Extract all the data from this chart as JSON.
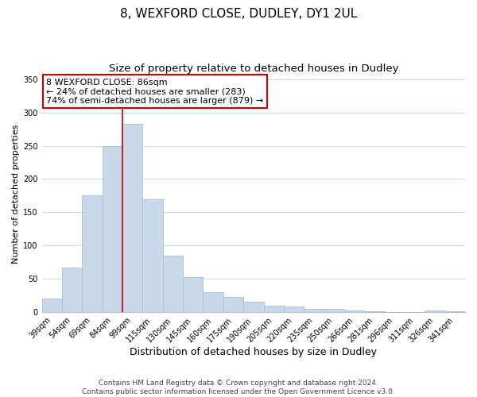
{
  "title": "8, WEXFORD CLOSE, DUDLEY, DY1 2UL",
  "subtitle": "Size of property relative to detached houses in Dudley",
  "xlabel": "Distribution of detached houses by size in Dudley",
  "ylabel": "Number of detached properties",
  "categories": [
    "39sqm",
    "54sqm",
    "69sqm",
    "84sqm",
    "99sqm",
    "115sqm",
    "130sqm",
    "145sqm",
    "160sqm",
    "175sqm",
    "190sqm",
    "205sqm",
    "220sqm",
    "235sqm",
    "250sqm",
    "266sqm",
    "281sqm",
    "296sqm",
    "311sqm",
    "326sqm",
    "341sqm"
  ],
  "values": [
    20,
    67,
    175,
    250,
    283,
    170,
    85,
    52,
    30,
    23,
    15,
    10,
    8,
    5,
    5,
    3,
    1,
    0,
    0,
    2,
    1
  ],
  "bar_color": "#c9d9ea",
  "bar_edge_color": "#a8c0d4",
  "grid_color": "#d0dce8",
  "background_color": "#ffffff",
  "annotation_box_text": "8 WEXFORD CLOSE: 86sqm\n← 24% of detached houses are smaller (283)\n74% of semi-detached houses are larger (879) →",
  "annotation_box_edge_color": "#cc0000",
  "vline_x": 3.5,
  "vline_color": "#cc0000",
  "ylim": [
    0,
    355
  ],
  "yticks": [
    0,
    50,
    100,
    150,
    200,
    250,
    300,
    350
  ],
  "footer_line1": "Contains HM Land Registry data © Crown copyright and database right 2024.",
  "footer_line2": "Contains public sector information licensed under the Open Government Licence v3.0.",
  "title_fontsize": 11,
  "subtitle_fontsize": 9.5,
  "xlabel_fontsize": 9,
  "ylabel_fontsize": 8,
  "tick_fontsize": 7,
  "annotation_fontsize": 8,
  "footer_fontsize": 6.5
}
